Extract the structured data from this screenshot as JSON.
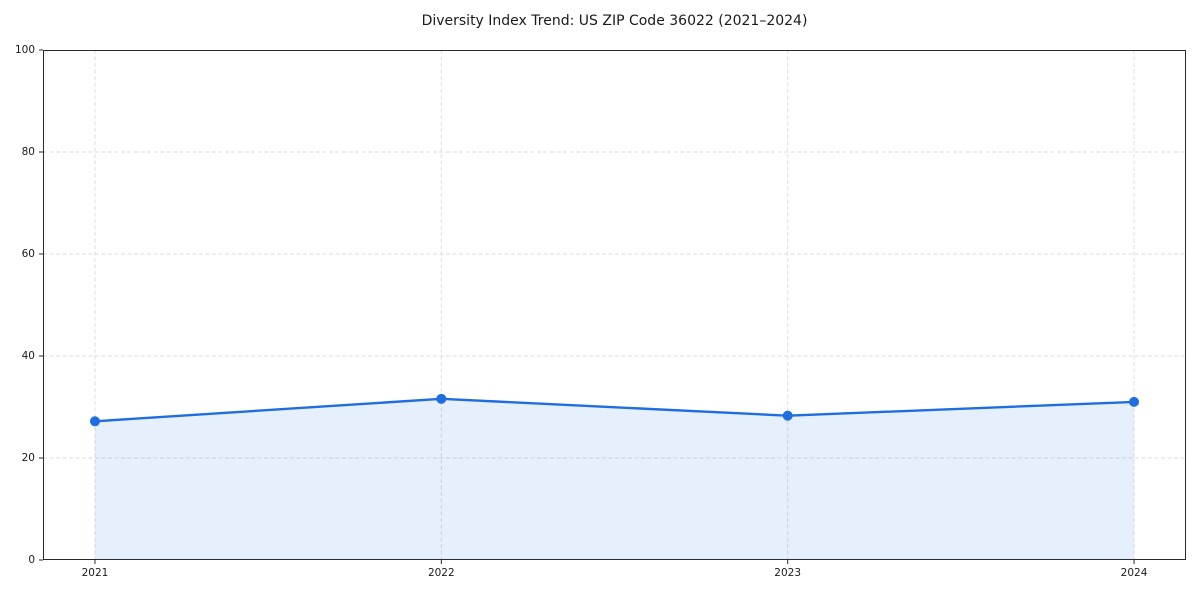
{
  "figure": {
    "title": "Diversity Index Trend: US ZIP Code 36022 (2021–2024)"
  },
  "chart_data": {
    "type": "line",
    "title": "Diversity Index Trend: US ZIP Code 36022 (2021–2024)",
    "x": [
      "2021",
      "2022",
      "2023",
      "2024"
    ],
    "series": [
      {
        "name": "Diversity Index",
        "values": [
          27.2,
          31.6,
          28.3,
          31.0
        ]
      }
    ],
    "xlabel": "",
    "ylabel": "",
    "ylim": [
      0,
      100
    ],
    "yticks": [
      0,
      20,
      40,
      60,
      80,
      100
    ],
    "grid": "dashed, horizontal at yticks and vertical at each year",
    "legend": "none",
    "style": {
      "line_color": "#1f6ee0",
      "marker_color": "#1f6ee0",
      "marker_radius": 5,
      "line_width": 2.4,
      "area_fill_color": "#1f6ee0",
      "area_fill_opacity": 0.11,
      "area_span": "between first and last data point only",
      "grid_color": "#dedede",
      "spine_color": "#2a2a2a",
      "tick_color": "#2a2a2a",
      "text_color": "#1a1a1a",
      "background_color": "#ffffff"
    }
  }
}
